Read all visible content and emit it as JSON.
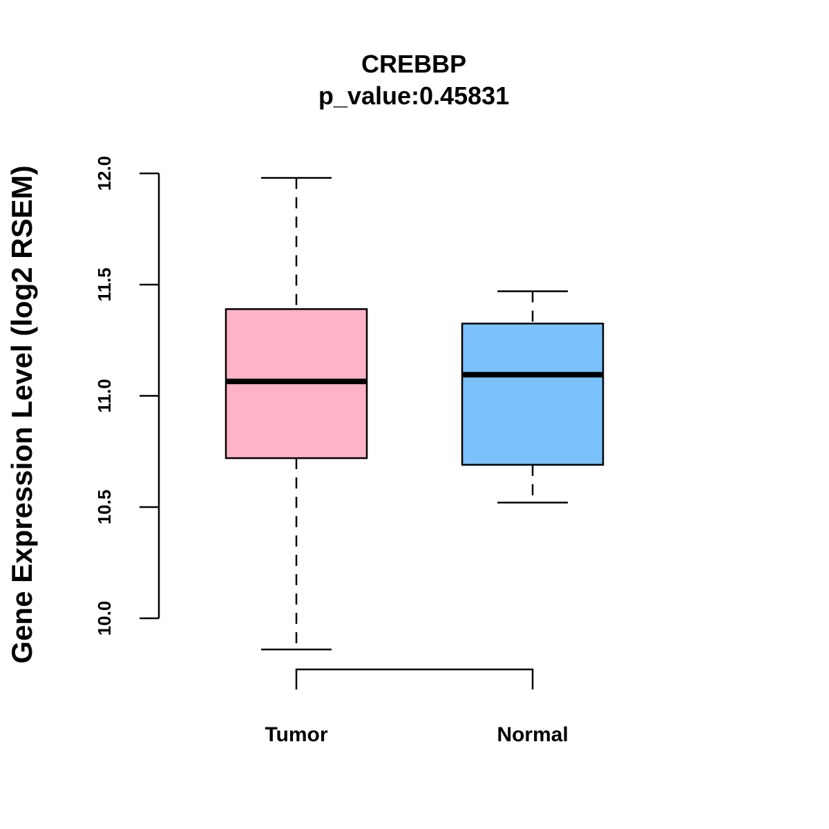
{
  "chart_data": {
    "type": "box",
    "title": "CREBBP",
    "subtitle": "p_value:0.45831",
    "ylabel": "Gene Expression Level (log2 RSEM)",
    "xlabel": "",
    "ylim": [
      10.0,
      12.0
    ],
    "yticks": [
      10.0,
      10.5,
      11.0,
      11.5,
      12.0
    ],
    "ytick_labels": [
      "10.0",
      "10.5",
      "11.0",
      "11.5",
      "12.0"
    ],
    "categories": [
      "Tumor",
      "Normal"
    ],
    "boxes": [
      {
        "category": "Tumor",
        "whisker_low": 9.86,
        "q1": 10.72,
        "median": 11.065,
        "q3": 11.39,
        "whisker_high": 11.98,
        "color": "#FFB3C6"
      },
      {
        "category": "Normal",
        "whisker_low": 10.52,
        "q1": 10.69,
        "median": 11.095,
        "q3": 11.325,
        "whisker_high": 11.47,
        "color": "#7AC2F9"
      }
    ],
    "comparison_bracket": {
      "between": [
        "Tumor",
        "Normal"
      ]
    },
    "grid": false,
    "legend": "none"
  }
}
